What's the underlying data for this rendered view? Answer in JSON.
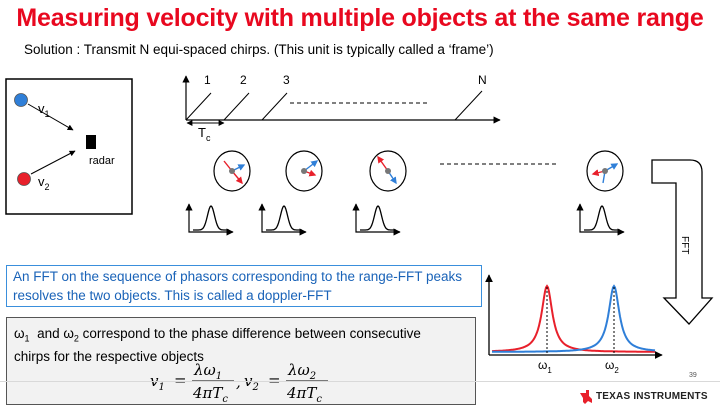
{
  "slide": {
    "title": "Measuring velocity with multiple objects at the same range",
    "subtitle": "Solution : Transmit N equi-spaced chirps. (This unit is typically called a ‘frame’)",
    "page_number": "39"
  },
  "scene": {
    "v1_label": "v",
    "v1_sub": "1",
    "v2_label": "v",
    "v2_sub": "2",
    "radar_label": "radar"
  },
  "chirps": {
    "labels": [
      "1",
      "2",
      "3",
      "N"
    ],
    "period_label": "T",
    "period_sub": "c"
  },
  "fft_label": "FFT",
  "fft_box": {
    "text": "An FFT on the sequence of phasors corresponding to the range-FFT peaks resolves the two objects. This is called a doppler-FFT"
  },
  "doppler_plot": {
    "omega1_label": "ω",
    "omega1_sub": "1",
    "omega2_label": "ω",
    "omega2_sub": "2"
  },
  "equation_box": {
    "line1_a": "ω",
    "line1_a_sub": "1",
    "line1_b": "  and ω",
    "line1_b_sub": "2",
    "line1_c": " correspond to the phase difference between consecutive",
    "line2": "chirps for the respective objects",
    "v1": "v",
    "v1_sub": "1",
    "v2": "v",
    "v2_sub": "2",
    "num1": "λω",
    "num1_sub": "1",
    "num2": "λω",
    "num2_sub": "2",
    "den": "4πT",
    "den_sub": "c",
    "eq": "=",
    "comma": ","
  },
  "logo": {
    "text": "TEXAS INSTRUMENTS",
    "icon": "texas-state-icon"
  },
  "colors": {
    "title": "#e8081f",
    "blue": "#2f7fd8",
    "red": "#e8202b",
    "box_border": "#3a8fdc"
  }
}
